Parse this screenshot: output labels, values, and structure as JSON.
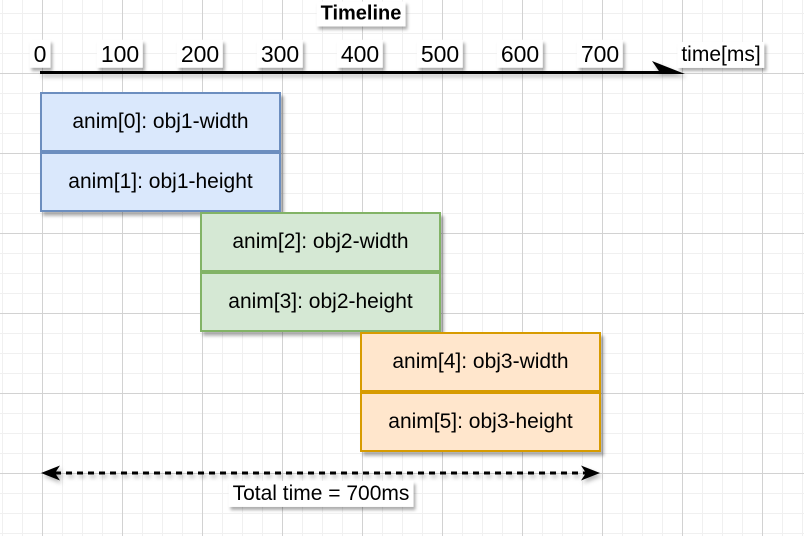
{
  "chart_data": {
    "type": "timeline",
    "title": "Timeline",
    "xlabel": "time[ms]",
    "x_ticks": [
      0,
      100,
      200,
      300,
      400,
      500,
      600,
      700
    ],
    "xlim": [
      0,
      700
    ],
    "bars": [
      {
        "label": "anim[0]: obj1-width",
        "start_ms": 0,
        "end_ms": 300,
        "fill": "#dae8fc",
        "stroke": "#6c8ebf"
      },
      {
        "label": "anim[1]: obj1-height",
        "start_ms": 0,
        "end_ms": 300,
        "fill": "#dae8fc",
        "stroke": "#6c8ebf"
      },
      {
        "label": "anim[2]: obj2-width",
        "start_ms": 200,
        "end_ms": 500,
        "fill": "#d5e8d4",
        "stroke": "#82b366"
      },
      {
        "label": "anim[3]: obj2-height",
        "start_ms": 200,
        "end_ms": 500,
        "fill": "#d5e8d4",
        "stroke": "#82b366"
      },
      {
        "label": "anim[4]: obj3-width",
        "start_ms": 400,
        "end_ms": 700,
        "fill": "#ffe6cc",
        "stroke": "#d79b00"
      },
      {
        "label": "anim[5]: obj3-height",
        "start_ms": 400,
        "end_ms": 700,
        "fill": "#ffe6cc",
        "stroke": "#d79b00"
      }
    ],
    "total_annotation": {
      "label": "Total time = 700ms",
      "span_ms": [
        0,
        700
      ]
    },
    "colors": {
      "axis": "#000000",
      "grid_minor": "#f0f0f0",
      "grid_major": "#d2d2d2",
      "label_background": "#ffffff"
    }
  }
}
